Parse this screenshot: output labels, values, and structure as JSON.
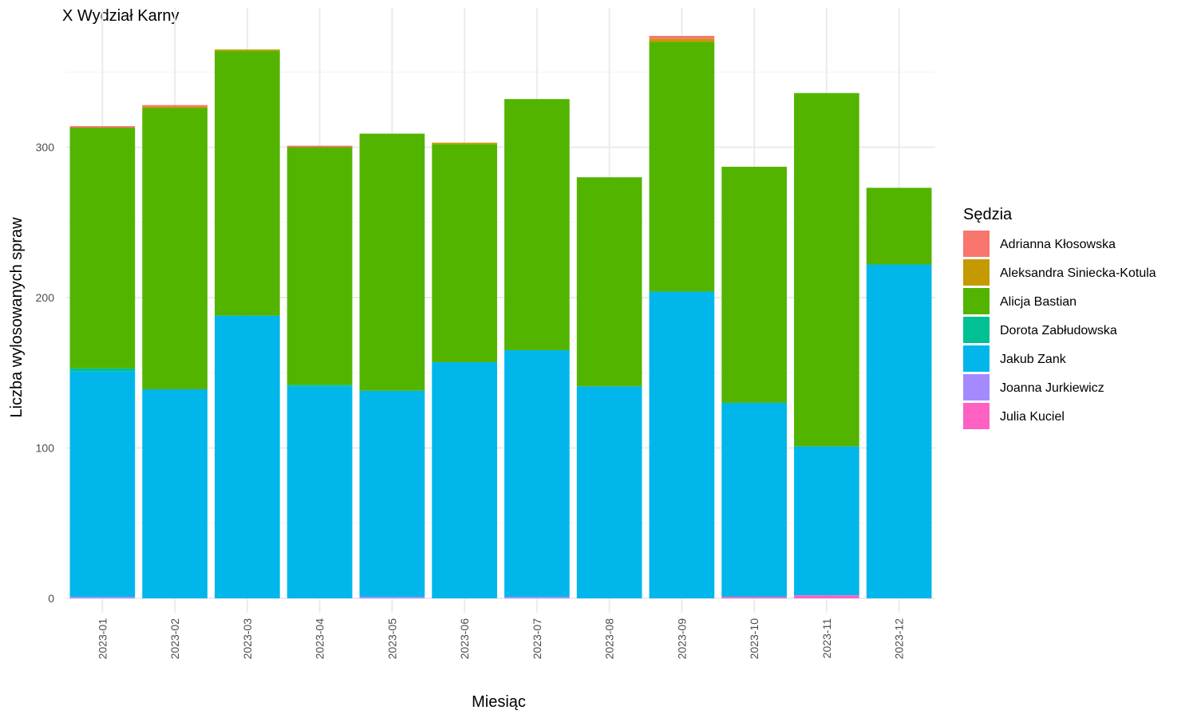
{
  "chart_data": {
    "type": "bar",
    "stacked": true,
    "title": "X Wydział Karny",
    "xlabel": "Miesiąc",
    "ylabel": "Liczba wylosowanych spraw",
    "ylim": [
      0,
      375
    ],
    "yticks": [
      0,
      100,
      200,
      300
    ],
    "grid": true,
    "legend_title": "Sędzia",
    "legend_position": "right",
    "categories": [
      "2023-01",
      "2023-02",
      "2023-03",
      "2023-04",
      "2023-05",
      "2023-06",
      "2023-07",
      "2023-08",
      "2023-09",
      "2023-10",
      "2023-11",
      "2023-12"
    ],
    "series": [
      {
        "name": "Julia Kuciel",
        "color": "#FF61C3",
        "values": [
          0,
          0,
          0,
          0,
          0,
          0,
          0,
          0,
          0,
          1,
          2,
          0
        ]
      },
      {
        "name": "Joanna Jurkiewicz",
        "color": "#A58AFF",
        "values": [
          1,
          0,
          0,
          0,
          1,
          0,
          1,
          0,
          0,
          0,
          0,
          0
        ]
      },
      {
        "name": "Jakub Zank",
        "color": "#00B6EB",
        "values": [
          150,
          139,
          188,
          141,
          137,
          157,
          164,
          141,
          204,
          129,
          99,
          222
        ]
      },
      {
        "name": "Dorota Zabłudowska",
        "color": "#00C094",
        "values": [
          2,
          0,
          0,
          1,
          0,
          0,
          0,
          0,
          0,
          0,
          0,
          0
        ]
      },
      {
        "name": "Alicja Bastian",
        "color": "#53B400",
        "values": [
          160,
          187,
          176,
          158,
          171,
          145,
          167,
          139,
          166,
          157,
          235,
          51
        ]
      },
      {
        "name": "Aleksandra Siniecka-Kotula",
        "color": "#C49A00",
        "values": [
          0,
          1,
          1,
          0,
          0,
          1,
          0,
          0,
          2,
          0,
          0,
          0
        ]
      },
      {
        "name": "Adrianna Kłosowska",
        "color": "#F8766D",
        "values": [
          1,
          1,
          0,
          1,
          0,
          0,
          0,
          0,
          2,
          0,
          0,
          0
        ]
      }
    ],
    "legend_order": [
      "Adrianna Kłosowska",
      "Aleksandra Siniecka-Kotula",
      "Alicja Bastian",
      "Dorota Zabłudowska",
      "Jakub Zank",
      "Joanna Jurkiewicz",
      "Julia Kuciel"
    ]
  }
}
